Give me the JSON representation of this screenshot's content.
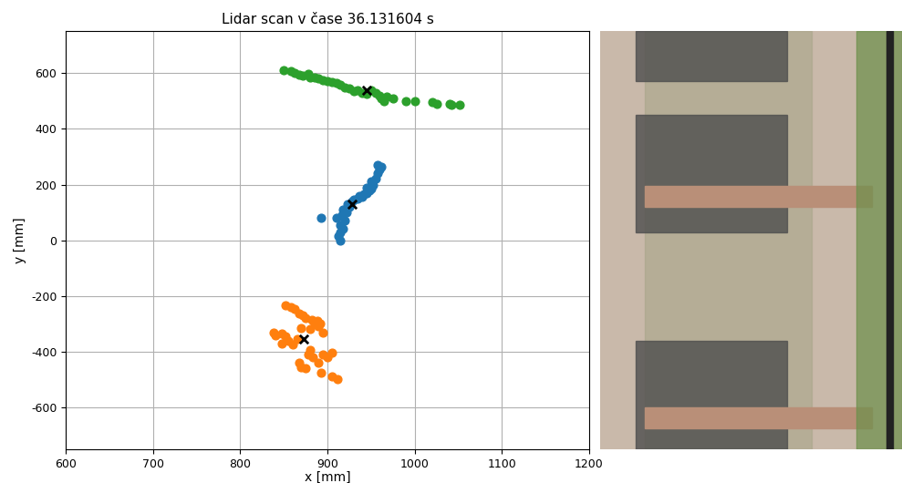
{
  "chart_data": {
    "type": "scatter",
    "title": "Lidar scan v čase 36.131604 s",
    "x_label": "x [mm]",
    "y_label": "y [mm]",
    "xlim": [
      600,
      1200
    ],
    "xticks": [
      600,
      700,
      800,
      900,
      1000,
      1100,
      1200
    ],
    "ylim": [
      -750,
      750
    ],
    "yticks": [
      -600,
      -400,
      -200,
      0,
      200,
      400,
      600
    ],
    "grid": true,
    "series": [
      {
        "color": "#2ca02c",
        "marker": "o",
        "x": [
          850,
          858,
          862,
          868,
          872,
          878,
          880,
          885,
          890,
          895,
          900,
          905,
          910,
          915,
          920,
          925,
          930,
          935,
          940,
          945,
          950,
          955,
          960,
          962,
          965,
          968,
          975,
          990,
          1000,
          1020,
          1025,
          1040,
          1042,
          1052
        ],
        "y": [
          612,
          608,
          600,
          595,
          590,
          598,
          585,
          583,
          580,
          575,
          570,
          568,
          565,
          560,
          550,
          545,
          535,
          538,
          530,
          525,
          540,
          528,
          520,
          510,
          500,
          515,
          510,
          500,
          498,
          495,
          490,
          490,
          485,
          487
        ]
      },
      {
        "color": "#1f77b4",
        "marker": "o",
        "x": [
          915,
          913,
          915,
          918,
          915,
          920,
          910,
          893,
          917,
          922,
          918,
          925,
          923,
          928,
          930,
          935,
          940,
          937,
          942,
          945,
          948,
          950,
          945,
          952,
          950,
          955,
          958,
          960,
          958,
          962
        ],
        "y": [
          0,
          15,
          30,
          40,
          55,
          70,
          80,
          82,
          90,
          100,
          110,
          120,
          130,
          140,
          145,
          150,
          155,
          160,
          165,
          170,
          178,
          185,
          190,
          200,
          210,
          220,
          240,
          255,
          270,
          265
        ]
      },
      {
        "color": "#ff7f0e",
        "marker": "o",
        "x": [
          852,
          858,
          862,
          868,
          872,
          875,
          882,
          888,
          892,
          890,
          885,
          870,
          880,
          895,
          838,
          840,
          848,
          852,
          855,
          848,
          860,
          865,
          880,
          878,
          883,
          868,
          870,
          875,
          895,
          905,
          900,
          890,
          893,
          905,
          912
        ],
        "y": [
          -232,
          -240,
          -248,
          -262,
          -270,
          -280,
          -285,
          -290,
          -300,
          -310,
          -300,
          -315,
          -320,
          -330,
          -330,
          -340,
          -335,
          -345,
          -360,
          -370,
          -375,
          -355,
          -395,
          -410,
          -420,
          -440,
          -455,
          -460,
          -410,
          -405,
          -420,
          -440,
          -475,
          -490,
          -500
        ]
      },
      {
        "color": "black",
        "marker": "x",
        "x": [
          945,
          928,
          873
        ],
        "y": [
          540,
          130,
          -355
        ]
      }
    ]
  }
}
